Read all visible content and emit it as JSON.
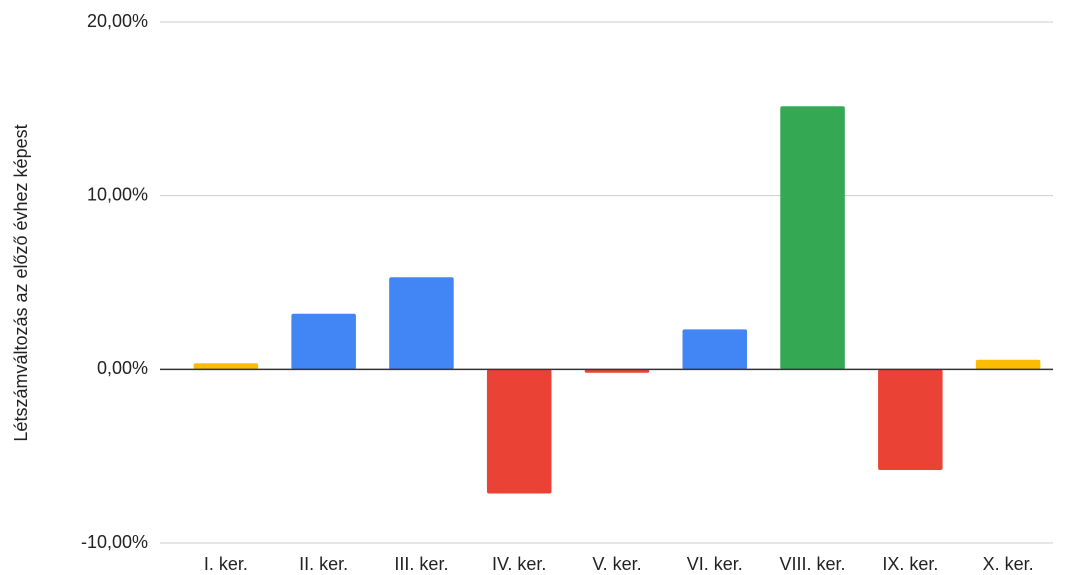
{
  "chart_data": {
    "type": "bar",
    "y_axis_label": "Létszámváltozás az előző évhez képest",
    "categories": [
      "I. ker.",
      "II. ker.",
      "III. ker.",
      "IV. ker.",
      "V. ker.",
      "VI. ker.",
      "VIII. ker.",
      "IX. ker.",
      "X. ker."
    ],
    "values": [
      0.35,
      3.2,
      5.3,
      -7.15,
      -0.2,
      2.3,
      15.15,
      -5.8,
      0.55
    ],
    "colors": [
      "#fbbc04",
      "#4285f4",
      "#4285f4",
      "#ea4335",
      "#ea4335",
      "#4285f4",
      "#34a853",
      "#ea4335",
      "#fbbc04"
    ],
    "ylim": [
      -10,
      20
    ],
    "yticks": [
      {
        "value": -10,
        "label": "-10,00%"
      },
      {
        "value": 0,
        "label": "0,00%"
      },
      {
        "value": 10,
        "label": "10,00%"
      },
      {
        "value": 20,
        "label": "20,00%"
      }
    ],
    "grid": true
  }
}
